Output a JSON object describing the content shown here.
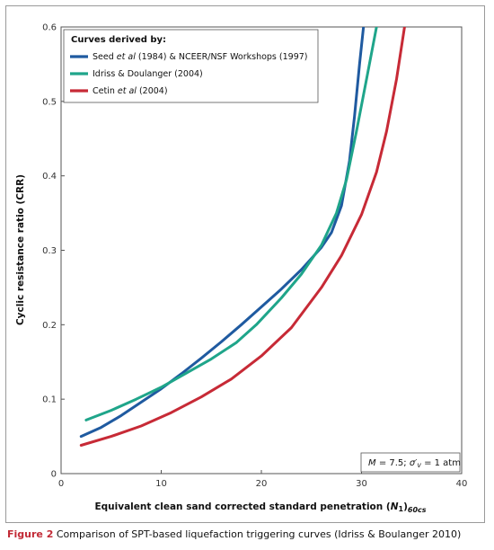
{
  "chart_data": {
    "type": "line",
    "xlabel_main": "Equivalent clean sand corrected standard penetration (",
    "xlabel_var": "N",
    "xlabel_sub1": "1",
    "xlabel_close": ")",
    "xlabel_sub2": "60cs",
    "ylabel": "Cyclic resistance ratio (CRR)",
    "xlim": [
      0,
      40
    ],
    "ylim": [
      0,
      0.6
    ],
    "x_ticks": [
      0,
      10,
      20,
      30,
      40
    ],
    "x_tick_labels": [
      "0",
      "10",
      "20",
      "30",
      "40"
    ],
    "y_ticks": [
      0,
      0.1,
      0.2,
      0.3,
      0.4,
      0.5,
      0.6
    ],
    "y_tick_labels": [
      "0",
      "0.1",
      "0.2",
      "0.3",
      "0.4",
      "0.5",
      "0.6"
    ],
    "grid": false,
    "legend_position": "top-left",
    "legend_title": "Curves derived by:",
    "series": [
      {
        "color": "#1f5aa0",
        "points": [
          [
            2,
            0.05
          ],
          [
            4,
            0.062
          ],
          [
            6,
            0.078
          ],
          [
            8,
            0.096
          ],
          [
            10,
            0.114
          ],
          [
            12,
            0.134
          ],
          [
            14,
            0.155
          ],
          [
            16,
            0.177
          ],
          [
            18,
            0.2
          ],
          [
            20,
            0.224
          ],
          [
            22,
            0.248
          ],
          [
            24,
            0.274
          ],
          [
            26,
            0.304
          ],
          [
            27,
            0.324
          ],
          [
            28,
            0.36
          ],
          [
            28.8,
            0.42
          ],
          [
            29.3,
            0.48
          ],
          [
            29.8,
            0.55
          ],
          [
            30.2,
            0.6
          ]
        ]
      },
      {
        "color": "#1fa58a",
        "points": [
          [
            2.5,
            0.072
          ],
          [
            5,
            0.085
          ],
          [
            7.5,
            0.1
          ],
          [
            10,
            0.116
          ],
          [
            12.5,
            0.135
          ],
          [
            15,
            0.154
          ],
          [
            17.5,
            0.176
          ],
          [
            19.5,
            0.2
          ],
          [
            22,
            0.236
          ],
          [
            24,
            0.268
          ],
          [
            26,
            0.307
          ],
          [
            27.5,
            0.35
          ],
          [
            28.5,
            0.395
          ],
          [
            29.5,
            0.46
          ],
          [
            30.5,
            0.53
          ],
          [
            31.5,
            0.6
          ]
        ]
      },
      {
        "color": "#c72a36",
        "points": [
          [
            2,
            0.038
          ],
          [
            5,
            0.05
          ],
          [
            8,
            0.064
          ],
          [
            11,
            0.082
          ],
          [
            14,
            0.103
          ],
          [
            17,
            0.127
          ],
          [
            20,
            0.158
          ],
          [
            23,
            0.196
          ],
          [
            26,
            0.25
          ],
          [
            28,
            0.293
          ],
          [
            30,
            0.348
          ],
          [
            31.5,
            0.405
          ],
          [
            32.5,
            0.46
          ],
          [
            33.5,
            0.53
          ],
          [
            34.3,
            0.6
          ]
        ]
      }
    ]
  },
  "legend": {
    "item1_pre": "Seed ",
    "item1_em": "et al",
    "item1_post": " (1984) & NCEER/NSF Workshops (1997)",
    "item2": "Idriss & Doulanger (2004)",
    "item3_pre": "Cetin ",
    "item3_em": "et al",
    "item3_post": " (2004)"
  },
  "note": {
    "m_var": "M",
    "m_text": " = 7.5; ",
    "sigma_var": "σ′",
    "sigma_sub": "v",
    "sigma_text": " = 1 atm"
  },
  "caption": {
    "label": "Figure 2",
    "text": " Comparison of SPT-based liquefaction triggering curves (Idriss & Boulanger 2010)"
  }
}
